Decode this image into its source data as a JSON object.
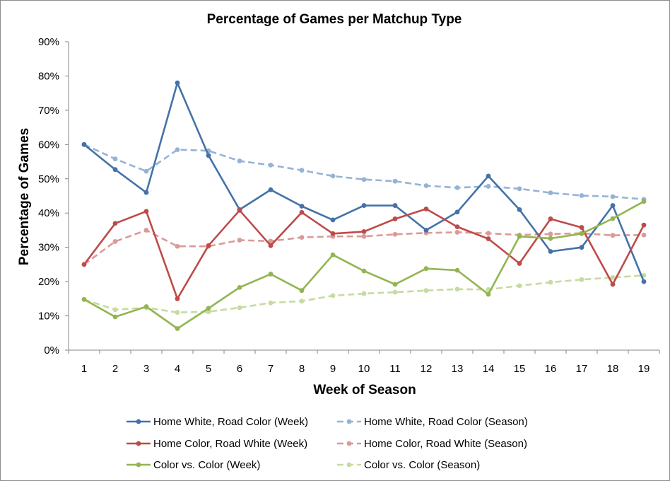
{
  "chart_data": {
    "type": "line",
    "title": "Percentage of Games per Matchup Type",
    "xlabel": "Week of Season",
    "ylabel": "Percentage of Games",
    "x": [
      1,
      2,
      3,
      4,
      5,
      6,
      7,
      8,
      9,
      10,
      11,
      12,
      13,
      14,
      15,
      16,
      17,
      18,
      19
    ],
    "y_ticks": [
      "0%",
      "10%",
      "20%",
      "30%",
      "40%",
      "50%",
      "60%",
      "70%",
      "80%",
      "90%"
    ],
    "ylim": [
      0,
      90
    ],
    "y_unit": "%",
    "grid": false,
    "legend_position": "bottom",
    "series": [
      {
        "name": "Home White, Road Color (Week)",
        "style": "solid",
        "color": "#4472a8",
        "values": [
          60,
          52.7,
          46,
          78,
          56.8,
          41,
          46.8,
          42,
          38,
          42.2,
          42.2,
          35,
          40.3,
          50.8,
          41,
          28.8,
          30,
          42.2,
          20
        ]
      },
      {
        "name": "Home White, Road Color (Season)",
        "style": "dashed",
        "color": "#95b3d7",
        "values": [
          60,
          55.8,
          52.2,
          58.5,
          58.2,
          55.2,
          54,
          52.5,
          50.8,
          49.8,
          49.3,
          48,
          47.4,
          47.8,
          47.1,
          45.9,
          45.1,
          44.8,
          44
        ]
      },
      {
        "name": "Home Color, Road White (Week)",
        "style": "solid",
        "color": "#be4b48",
        "values": [
          25,
          37,
          40.5,
          15,
          30.5,
          40.8,
          30.5,
          40.2,
          34,
          34.6,
          38.3,
          41.2,
          36,
          32.5,
          25.3,
          38.3,
          35.8,
          19.2,
          36.5
        ]
      },
      {
        "name": "Home Color, Road White (Season)",
        "style": "dashed",
        "color": "#db9a98",
        "values": [
          25,
          31.7,
          35,
          30.3,
          30.3,
          32.1,
          31.8,
          32.9,
          33.2,
          33.2,
          33.8,
          34.2,
          34.4,
          34.1,
          33.6,
          33.9,
          34.1,
          33.5,
          33.6
        ]
      },
      {
        "name": "Color vs. Color (Week)",
        "style": "solid",
        "color": "#92b551",
        "values": [
          14.8,
          9.7,
          12.7,
          6.3,
          12.2,
          18.3,
          22.2,
          17.4,
          27.8,
          23.1,
          19.2,
          23.8,
          23.3,
          16.3,
          33.2,
          32.6,
          34,
          38.4,
          43.4
        ]
      },
      {
        "name": "Color vs. Color (Season)",
        "style": "dashed",
        "color": "#c6dba0",
        "values": [
          14.8,
          11.8,
          12.4,
          11,
          11.2,
          12.4,
          13.8,
          14.3,
          15.9,
          16.5,
          16.9,
          17.4,
          17.8,
          17.7,
          18.8,
          19.8,
          20.6,
          21.2,
          21.8
        ]
      }
    ]
  }
}
